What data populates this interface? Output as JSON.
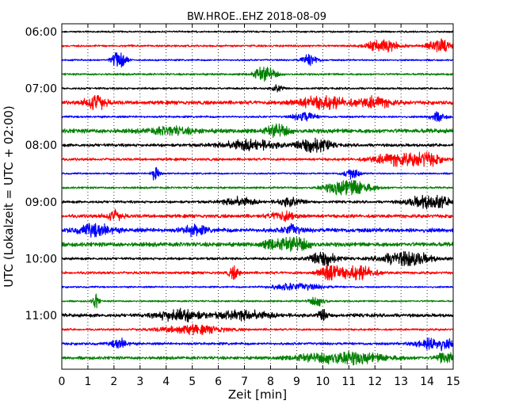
{
  "chart_data": {
    "type": "line",
    "title": "BW.HROE..EHZ 2018-08-09",
    "xlabel": "Zeit  [min]",
    "ylabel": "UTC (Lokalzeit = UTC + 02:00)",
    "xlim": [
      0,
      15
    ],
    "x_ticks": [
      "0",
      "1",
      "2",
      "3",
      "4",
      "5",
      "6",
      "7",
      "8",
      "9",
      "10",
      "11",
      "12",
      "13",
      "14",
      "15"
    ],
    "y_tick_labels": [
      "06:00",
      "07:00",
      "08:00",
      "09:00",
      "10:00",
      "11:00"
    ],
    "trace_interval_min": 15,
    "grid": "vertical dotted",
    "trace_colors": [
      "#000000",
      "#ff0000",
      "#0000ff",
      "#008000"
    ],
    "traces": [
      {
        "start": "06:00",
        "color": "#000000",
        "noise": 0.1,
        "events": []
      },
      {
        "start": "06:15",
        "color": "#ff0000",
        "noise": 0.12,
        "events": [
          [
            12.3,
            0.6,
            0.7
          ],
          [
            14.5,
            0.5,
            0.8
          ]
        ]
      },
      {
        "start": "06:30",
        "color": "#0000ff",
        "noise": 0.1,
        "events": [
          [
            2.2,
            0.25,
            1.3
          ],
          [
            9.5,
            0.3,
            0.7
          ]
        ]
      },
      {
        "start": "06:45",
        "color": "#008000",
        "noise": 0.12,
        "events": [
          [
            7.8,
            0.4,
            0.9
          ]
        ]
      },
      {
        "start": "07:00",
        "color": "#000000",
        "noise": 0.12,
        "events": [
          [
            8.3,
            0.2,
            0.5
          ]
        ]
      },
      {
        "start": "07:15",
        "color": "#ff0000",
        "noise": 0.22,
        "events": [
          [
            1.3,
            0.35,
            1.1
          ],
          [
            10.0,
            1.0,
            0.7
          ],
          [
            12.0,
            0.6,
            0.6
          ]
        ]
      },
      {
        "start": "07:30",
        "color": "#0000ff",
        "noise": 0.12,
        "events": [
          [
            9.3,
            0.4,
            0.6
          ],
          [
            14.4,
            0.3,
            0.5
          ]
        ]
      },
      {
        "start": "07:45",
        "color": "#008000",
        "noise": 0.25,
        "events": [
          [
            8.3,
            0.4,
            0.7
          ],
          [
            4.2,
            0.8,
            0.4
          ]
        ]
      },
      {
        "start": "08:00",
        "color": "#000000",
        "noise": 0.18,
        "events": [
          [
            7.2,
            1.0,
            0.6
          ],
          [
            9.6,
            0.6,
            1.0
          ]
        ]
      },
      {
        "start": "08:15",
        "color": "#ff0000",
        "noise": 0.15,
        "events": [
          [
            12.8,
            0.9,
            0.7
          ],
          [
            14.0,
            0.5,
            0.8
          ]
        ]
      },
      {
        "start": "08:30",
        "color": "#0000ff",
        "noise": 0.1,
        "events": [
          [
            3.6,
            0.15,
            1.1
          ],
          [
            11.1,
            0.3,
            0.6
          ]
        ]
      },
      {
        "start": "08:45",
        "color": "#008000",
        "noise": 0.12,
        "events": [
          [
            11.0,
            0.8,
            1.1
          ]
        ]
      },
      {
        "start": "09:00",
        "color": "#000000",
        "noise": 0.15,
        "events": [
          [
            14.1,
            0.8,
            0.8
          ],
          [
            6.8,
            0.6,
            0.5
          ],
          [
            8.8,
            0.5,
            0.5
          ]
        ]
      },
      {
        "start": "09:15",
        "color": "#ff0000",
        "noise": 0.2,
        "events": [
          [
            2.0,
            0.3,
            0.6
          ],
          [
            8.5,
            0.5,
            0.5
          ]
        ]
      },
      {
        "start": "09:30",
        "color": "#0000ff",
        "noise": 0.25,
        "events": [
          [
            1.3,
            0.6,
            0.7
          ],
          [
            5.1,
            0.4,
            0.6
          ],
          [
            8.8,
            0.3,
            0.6
          ]
        ]
      },
      {
        "start": "09:45",
        "color": "#008000",
        "noise": 0.25,
        "events": [
          [
            9.0,
            0.5,
            0.8
          ],
          [
            8.1,
            0.4,
            0.5
          ]
        ]
      },
      {
        "start": "10:00",
        "color": "#000000",
        "noise": 0.15,
        "events": [
          [
            10.0,
            0.5,
            1.0
          ],
          [
            13.2,
            0.9,
            0.9
          ]
        ]
      },
      {
        "start": "10:15",
        "color": "#ff0000",
        "noise": 0.15,
        "events": [
          [
            10.3,
            0.4,
            1.3
          ],
          [
            11.4,
            0.6,
            0.8
          ],
          [
            6.6,
            0.2,
            0.7
          ]
        ]
      },
      {
        "start": "10:30",
        "color": "#0000ff",
        "noise": 0.1,
        "events": [
          [
            9.0,
            1.0,
            0.4
          ]
        ]
      },
      {
        "start": "10:45",
        "color": "#008000",
        "noise": 0.1,
        "events": [
          [
            1.3,
            0.12,
            0.9
          ],
          [
            9.8,
            0.3,
            0.6
          ]
        ]
      },
      {
        "start": "11:00",
        "color": "#000000",
        "noise": 0.2,
        "events": [
          [
            4.5,
            0.8,
            0.7
          ],
          [
            7.0,
            1.0,
            0.5
          ],
          [
            10.0,
            0.2,
            0.8
          ]
        ]
      },
      {
        "start": "11:15",
        "color": "#ff0000",
        "noise": 0.12,
        "events": [
          [
            5.0,
            1.2,
            0.5
          ]
        ]
      },
      {
        "start": "11:30",
        "color": "#0000ff",
        "noise": 0.15,
        "events": [
          [
            14.3,
            0.7,
            0.8
          ],
          [
            2.2,
            0.3,
            0.6
          ]
        ]
      },
      {
        "start": "11:45",
        "color": "#008000",
        "noise": 0.18,
        "events": [
          [
            10.8,
            1.6,
            0.7
          ],
          [
            14.7,
            0.3,
            0.8
          ]
        ]
      }
    ]
  }
}
